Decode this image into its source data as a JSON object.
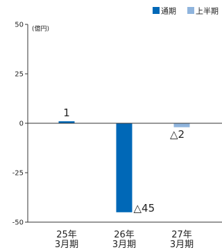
{
  "chart_data": {
    "type": "bar",
    "unit": "(億円)",
    "categories": [
      [
        "25年",
        "3月期"
      ],
      [
        "26年",
        "3月期"
      ],
      [
        "27年",
        "3月期"
      ]
    ],
    "series": [
      {
        "name": "通期",
        "color": "#0068b7",
        "values": [
          1,
          -45,
          null
        ]
      },
      {
        "name": "上半期",
        "color": "#8fb4dd",
        "values": [
          null,
          null,
          -2
        ]
      }
    ],
    "data_labels": [
      "1",
      "△45",
      "△2"
    ],
    "ylim": [
      -50,
      50
    ],
    "yticks": [
      50,
      25,
      0,
      -25,
      -50
    ],
    "ytick_labels": [
      "50",
      "25",
      "0",
      "-25",
      "-50"
    ],
    "grid": false,
    "legend_position": "top-right"
  }
}
